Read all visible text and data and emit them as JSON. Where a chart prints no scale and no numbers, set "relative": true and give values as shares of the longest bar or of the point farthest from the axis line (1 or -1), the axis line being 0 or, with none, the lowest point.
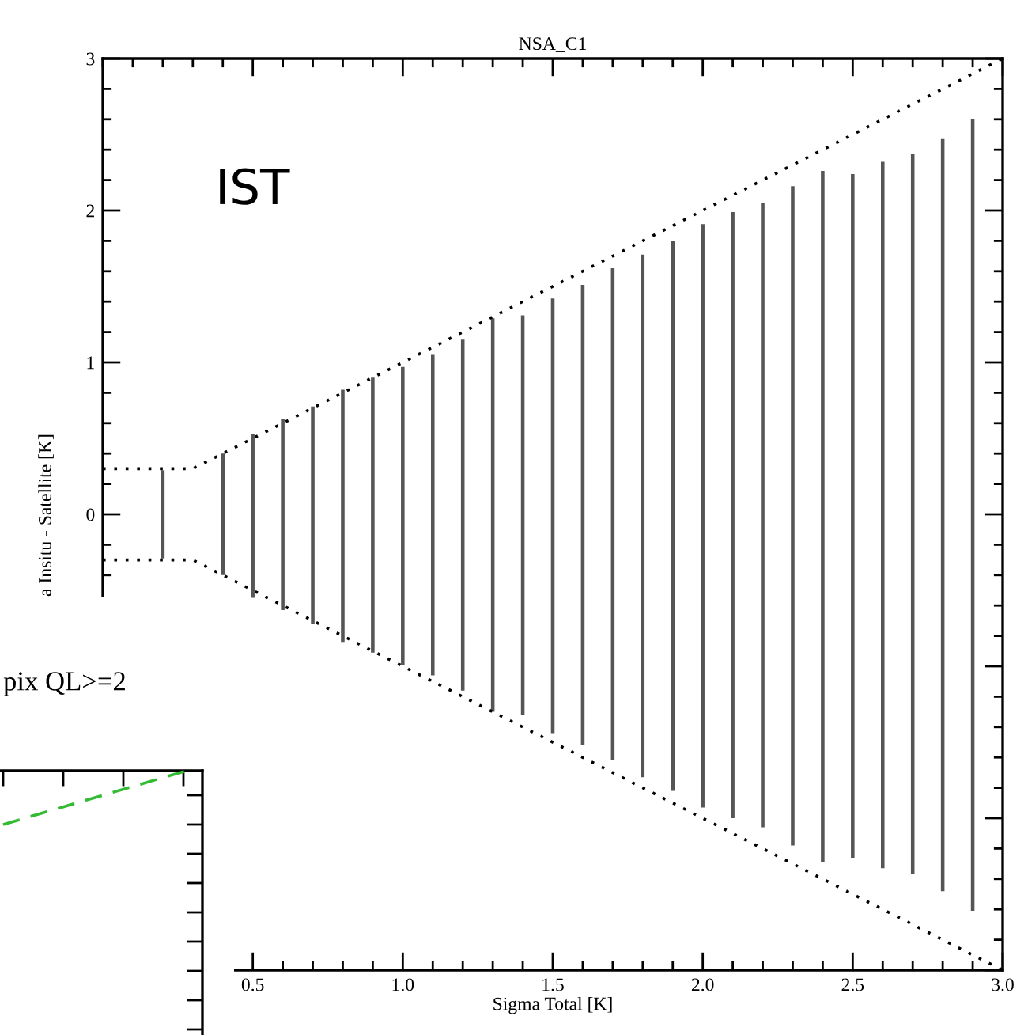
{
  "chart_data": [
    {
      "type": "bar",
      "title": "NSA_C1",
      "xlabel": "Sigma Total [K]",
      "ylabel": "a Insitu - Satellite [K]",
      "annotations": [
        "IST"
      ],
      "xlim": [
        0,
        3
      ],
      "ylim": [
        -3,
        3
      ],
      "xticks": [
        {
          "value": 0.5,
          "label": "0.5"
        },
        {
          "value": 1.0,
          "label": "1.0"
        },
        {
          "value": 1.5,
          "label": "1.5"
        },
        {
          "value": 2.0,
          "label": "2.0"
        },
        {
          "value": 2.5,
          "label": "2.5"
        },
        {
          "value": 3.0,
          "label": "3.0"
        }
      ],
      "yticks": [
        {
          "value": -3,
          "label": null
        },
        {
          "value": -2,
          "label": null
        },
        {
          "value": -1,
          "label": null
        },
        0,
        1,
        2,
        3
      ],
      "series": [
        {
          "type": "bar",
          "color": "#555555",
          "x": [
            0.2,
            0.4,
            0.5,
            0.6,
            0.7,
            0.8,
            0.9,
            1.0,
            1.1,
            1.2,
            1.3,
            1.4,
            1.5,
            1.6,
            1.7,
            1.8,
            1.9,
            2.0,
            2.1,
            2.2,
            2.3,
            2.4,
            2.5,
            2.6,
            2.7,
            2.8,
            2.9
          ],
          "base": [
            -0.29,
            -0.4,
            -0.55,
            -0.63,
            -0.72,
            -0.84,
            -0.91,
            -0.99,
            -1.06,
            -1.16,
            -1.3,
            -1.32,
            -1.44,
            -1.52,
            -1.62,
            -1.73,
            -1.82,
            -1.93,
            -2.0,
            -2.06,
            -2.18,
            -2.29,
            -2.26,
            -2.33,
            -2.37,
            -2.48,
            -2.61
          ],
          "values": [
            0.58,
            0.8,
            1.08,
            1.26,
            1.43,
            1.66,
            1.81,
            1.96,
            2.11,
            2.31,
            2.59,
            2.63,
            2.86,
            3.03,
            3.24,
            3.44,
            3.62,
            3.84,
            3.99,
            4.11,
            4.34,
            4.55,
            4.5,
            4.65,
            4.74,
            4.95,
            5.21
          ]
        },
        {
          "type": "line",
          "color": "#000000",
          "line_style": "dotted",
          "x": [
            0,
            0.3,
            3
          ],
          "values": [
            0.3,
            0.3,
            3
          ]
        },
        {
          "type": "line",
          "color": "#000000",
          "line_style": "dotted",
          "x": [
            0,
            0.3,
            3
          ],
          "values": [
            -0.3,
            -0.3,
            -3
          ]
        }
      ]
    },
    {
      "type": "line",
      "title": "pix QL>=2",
      "relative": true,
      "categories": [
        null,
        null
      ],
      "series": [
        {
          "color": "#33bb33",
          "line_style": "dashed",
          "values": [
            0,
            1
          ]
        }
      ]
    }
  ]
}
